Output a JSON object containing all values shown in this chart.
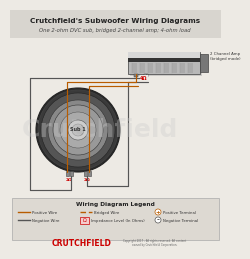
{
  "title": "Crutchfield's Subwoofer Wiring Diagrams",
  "subtitle": "One 2-ohm DVC sub, bridged 2-channel amp; 4-ohm load",
  "bg_color": "#edeae4",
  "title_color": "#222222",
  "subtitle_color": "#333333",
  "amp_label": "2 Channel Amp\n(bridged mode)",
  "sub_label": "Sub 1",
  "ohm_left": "2Ω",
  "ohm_right": "2Ω",
  "ohm_top": "4Ω",
  "legend_title": "Wiring Diagram Legend",
  "brand": "CRUTCHFIELD",
  "brand_color": "#cc0000",
  "pos_color": "#b85c00",
  "neg_color": "#555555",
  "red_color": "#cc0000"
}
